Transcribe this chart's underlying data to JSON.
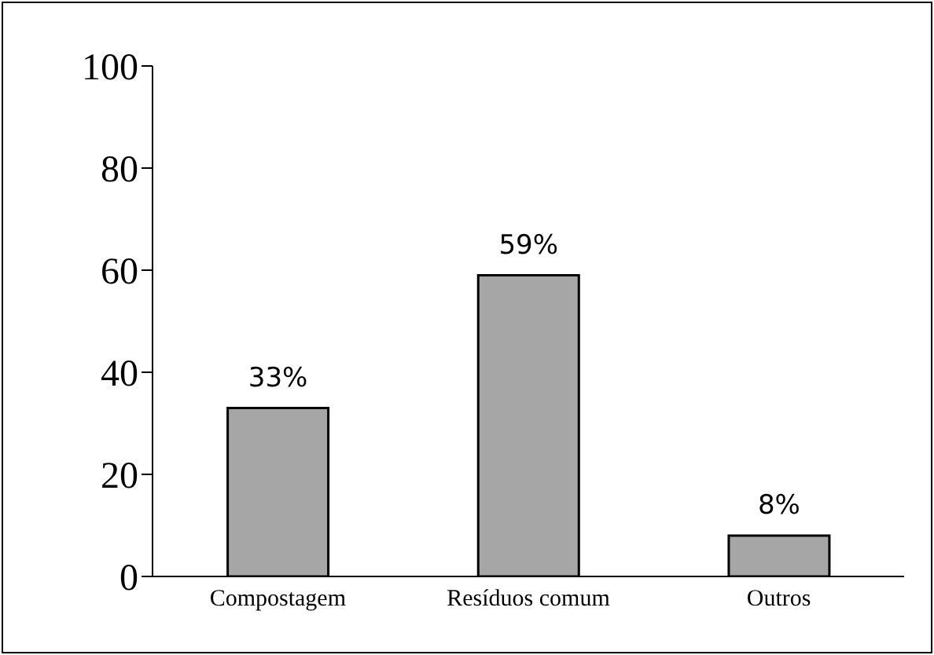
{
  "chart_data": {
    "type": "bar",
    "categories": [
      "Compostagem",
      "Resíduos comum",
      "Outros"
    ],
    "values": [
      33,
      59,
      8
    ],
    "value_labels": [
      "33%",
      "59%",
      "8%"
    ],
    "color": "#a6a6a6",
    "ylim": [
      0,
      100
    ],
    "yticks": [
      0,
      20,
      40,
      60,
      80,
      100
    ],
    "grid": false,
    "legend": false
  }
}
